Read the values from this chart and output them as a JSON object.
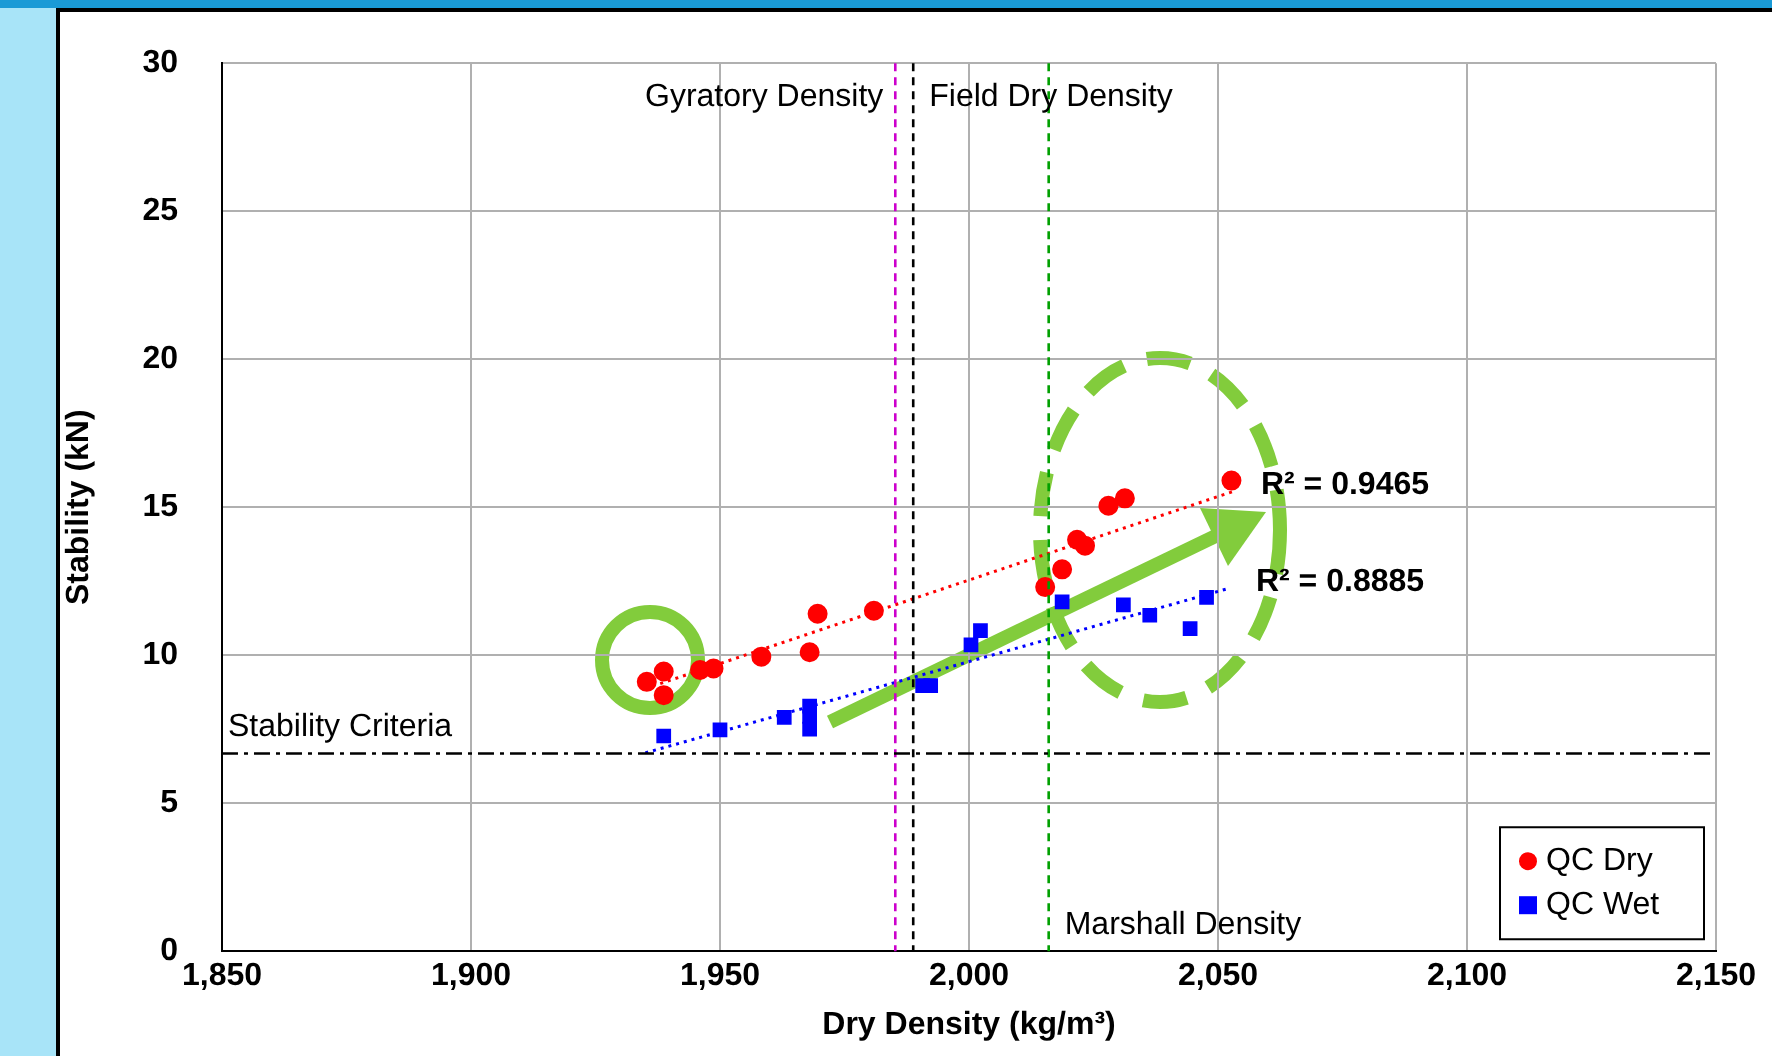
{
  "chart_data": {
    "type": "scatter",
    "xlabel": "Dry Density (kg/m³)",
    "ylabel": "Stability (kN)",
    "xlim": [
      1850,
      2150
    ],
    "xticks": [
      {
        "value": 1850,
        "label": "1,850"
      },
      {
        "value": 1900,
        "label": "1,900"
      },
      {
        "value": 1950,
        "label": "1,950"
      },
      {
        "value": 2000,
        "label": "2,000"
      },
      {
        "value": 2050,
        "label": "2,050"
      },
      {
        "value": 2100,
        "label": "2,100"
      },
      {
        "value": 2150,
        "label": "2,150"
      }
    ],
    "ylim": [
      0,
      30
    ],
    "yticks": [
      0,
      5,
      10,
      15,
      20,
      25,
      30
    ],
    "grid": true,
    "legend": "bottom right",
    "series": [
      {
        "name": "QC Dry",
        "marker": "circle",
        "color": "#ff0000",
        "x": [
          1935.3,
          1938.7,
          1938.7,
          1946,
          1948.7,
          1958.3,
          1968,
          1969.6,
          1980.9,
          2015.3,
          2018.7,
          2021.7,
          2023.3,
          2028,
          2031.3,
          2052.7
        ],
        "values": [
          9.1,
          9.45,
          8.65,
          9.5,
          9.55,
          9.95,
          10.1,
          11.4,
          11.5,
          12.3,
          12.9,
          13.9,
          13.7,
          15.05,
          15.3,
          15.9
        ]
      },
      {
        "name": "QC Wet",
        "marker": "square",
        "color": "#0000ff",
        "x": [
          1938.7,
          1950,
          1962.9,
          1968,
          1968,
          1968,
          1990.7,
          1992.3,
          2000.4,
          2002.3,
          2018.7,
          2031,
          2036.3,
          2044.4,
          2047.7
        ],
        "values": [
          7.27,
          7.48,
          7.9,
          8.28,
          7.93,
          7.5,
          8.97,
          8.97,
          10.35,
          10.83,
          11.8,
          11.7,
          11.35,
          10.9,
          11.95
        ]
      },
      {
        "type": "line",
        "marker": "none",
        "line_style": "dotted",
        "color": "#ff0000",
        "x": [
          1938,
          2053
        ],
        "values": [
          9.04,
          15.53
        ]
      },
      {
        "type": "line",
        "marker": "none",
        "line_style": "dotted",
        "color": "#0000ff",
        "x": [
          1935,
          2052
        ],
        "values": [
          6.7,
          12.25
        ]
      }
    ],
    "ref_lines": [
      {
        "axis": "x",
        "value": 1985.2,
        "label": "Gyratory Density",
        "color": "#cc00cc",
        "line_style": "dashed"
      },
      {
        "axis": "x",
        "value": 1988.8,
        "label": "Field Dry Density",
        "color": "#000000",
        "line_style": "dashed"
      },
      {
        "axis": "x",
        "value": 2016,
        "label": "Marshall Density",
        "color": "#00a000",
        "line_style": "dashed"
      },
      {
        "axis": "y",
        "value": 6.68,
        "label": "Stability Criteria",
        "color": "#000000",
        "line_style": "dashdot"
      }
    ],
    "annotations": [
      {
        "text": "R² = 0.9465",
        "x": 2053,
        "y": 15.53
      },
      {
        "text": "R² = 0.8885",
        "x": 2052,
        "y": 12.25
      }
    ]
  }
}
